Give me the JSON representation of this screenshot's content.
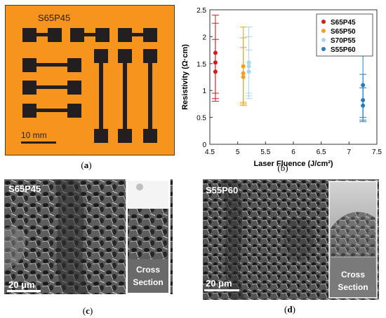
{
  "panels": {
    "a": {
      "caption": "a",
      "label": "S65P45",
      "scale_bar": "10 mm",
      "colors": {
        "substrate": "#f7941d",
        "trace": "#231f20"
      }
    },
    "b": {
      "caption": "b"
    },
    "c": {
      "caption": "c",
      "sample_label": "S65P45",
      "scale_bar": "20 μm",
      "inset_label_line1": "Cross",
      "inset_label_line2": "Section"
    },
    "d": {
      "caption": "d",
      "sample_label": "S55P60",
      "scale_bar": "20 μm",
      "inset_label_line1": "Cross",
      "inset_label_line2": "Section"
    }
  },
  "chart_data": {
    "type": "scatter",
    "xlabel": "Laser Fluence (J/cm²)",
    "ylabel": "Resistivity (Ω·cm)",
    "xlim": [
      4.5,
      7.5
    ],
    "ylim": [
      0,
      2.5
    ],
    "xticks": [
      "4.5",
      "5",
      "5.5",
      "6",
      "6.5",
      "7",
      "7.5"
    ],
    "yticks": [
      "0",
      "0.5",
      "1",
      "1.5",
      "2",
      "2.5"
    ],
    "grid": false,
    "legend_position": "top-right",
    "series": [
      {
        "name": "S65P45",
        "color": "#d7191c",
        "points": [
          {
            "x": 4.6,
            "y": 1.7,
            "lo": 0.95,
            "hi": 2.4
          },
          {
            "x": 4.6,
            "y": 1.52,
            "lo": 0.85,
            "hi": 2.25
          },
          {
            "x": 4.6,
            "y": 1.35,
            "lo": 0.8,
            "hi": 1.95
          }
        ]
      },
      {
        "name": "S65P50",
        "color": "#f4a11b",
        "points": [
          {
            "x": 5.1,
            "y": 1.45,
            "lo": 0.78,
            "hi": 2.18
          },
          {
            "x": 5.1,
            "y": 1.32,
            "lo": 0.72,
            "hi": 1.98
          },
          {
            "x": 5.1,
            "y": 1.25,
            "lo": 0.75,
            "hi": 1.8
          }
        ]
      },
      {
        "name": "S70P55",
        "color": "#a6d8ee",
        "points": [
          {
            "x": 5.2,
            "y": 1.52,
            "lo": 0.9,
            "hi": 2.18
          },
          {
            "x": 5.2,
            "y": 1.45,
            "lo": 0.95,
            "hi": 2.0
          },
          {
            "x": 5.2,
            "y": 1.35,
            "lo": 0.85,
            "hi": 1.75
          }
        ]
      },
      {
        "name": "S55P60",
        "color": "#2b7bba",
        "points": [
          {
            "x": 7.25,
            "y": 1.1,
            "lo": 0.5,
            "hi": 1.78
          },
          {
            "x": 7.25,
            "y": 0.82,
            "lo": 0.45,
            "hi": 1.3
          },
          {
            "x": 7.25,
            "y": 0.72,
            "lo": 0.42,
            "hi": 1.05
          }
        ]
      }
    ]
  }
}
